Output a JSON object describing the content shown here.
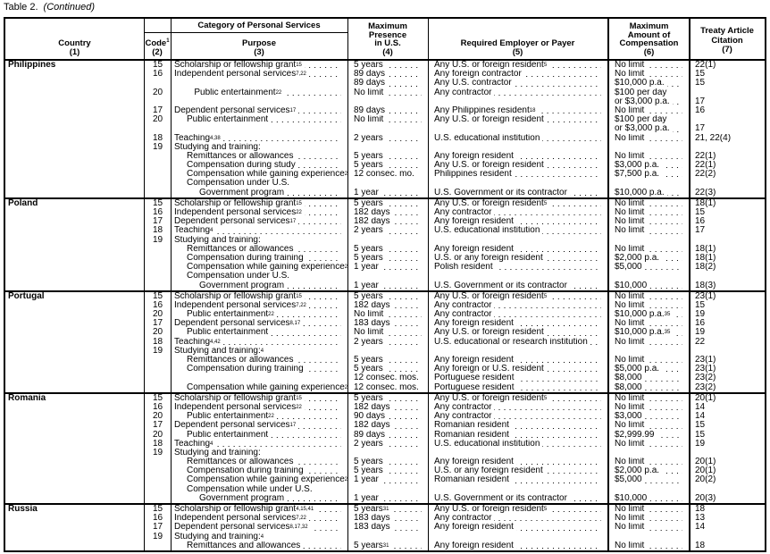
{
  "caption": {
    "label": "Table 2.",
    "note": "(Continued)"
  },
  "headers": {
    "country": "Country",
    "country_num": "(1)",
    "code": "Code",
    "code_sup": "1",
    "code_num": "(2)",
    "category": "Category of Personal Services",
    "purpose": "Purpose",
    "purpose_num": "(3)",
    "presence_1": "Maximum",
    "presence_2": "Presence",
    "presence_3": "in U.S.",
    "presence_num": "(4)",
    "payer": "Required Employer or Payer",
    "payer_num": "(5)",
    "comp_1": "Maximum",
    "comp_2": "Amount of",
    "comp_3": "Compensation",
    "comp_num": "(6)",
    "cite_1": "Treaty Article",
    "cite_2": "Citation",
    "cite_num": "(7)"
  },
  "countries": [
    {
      "name": "Philippines",
      "rows": [
        {
          "c": "15",
          "p": "Scholarship or fellowship grant",
          "ps": "15",
          "m": "5 years",
          "e": "Any U.S. or foreign resident",
          "es": "5",
          "a": "No limit",
          "t": "22(1)"
        },
        {
          "c": "16",
          "p": "Independent personal services",
          "ps": "7,22",
          "m": "89 days",
          "e": "Any foreign contractor",
          "a": "No limit",
          "t": "15"
        },
        {
          "m": "89 days",
          "e": "Any U.S. contractor",
          "a": "$10,000 p.a.",
          "t": "15"
        },
        {
          "c": "20",
          "p": "Public entertainment",
          "ps": "22",
          "i": 1.6,
          "m": "No limit",
          "e": "Any contractor",
          "a": "$100 per day"
        },
        {
          "a": "or $3,000 p.a.",
          "t": "17"
        },
        {
          "c": "17",
          "p": "Dependent personal services",
          "ps": "17",
          "m": "89 days",
          "e": "Any Philippines resident",
          "es": "18",
          "a": "No limit",
          "t": "16"
        },
        {
          "c": "20",
          "p": "Public entertainment",
          "i": 1,
          "m": "No limit",
          "e": "Any U.S. or foreign resident",
          "a": "$100 per day"
        },
        {
          "a": "or $3,000 p.a.",
          "t": "17"
        },
        {
          "c": "18",
          "p": "Teaching",
          "ps": "4,38",
          "m": "2 years",
          "e": "U.S. educational institution",
          "a": "No limit",
          "t": "21, 22(4)"
        },
        {
          "c": "19",
          "p": "Studying and training:"
        },
        {
          "p": "Remittances or allowances",
          "i": 1,
          "m": "5 years",
          "e": "Any foreign resident",
          "a": "No limit",
          "t": "22(1)"
        },
        {
          "p": "Compensation during study",
          "i": 1,
          "m": "5 years",
          "e": "Any U.S. or foreign resident",
          "a": "$3,000 p.a.",
          "t": "22(1)"
        },
        {
          "p": "Compensation while gaining experience",
          "ps": "2",
          "i": 1,
          "m": "12 consec. mo.",
          "e": "Philippines resident",
          "a": "$7,500 p.a.",
          "t": "22(2)"
        },
        {
          "p": "Compensation under U.S.",
          "i": 1
        },
        {
          "p": "Government program",
          "i": 2,
          "m": "1 year",
          "e": "U.S. Government or its contractor",
          "a": "$10,000 p.a.",
          "t": "22(3)"
        }
      ]
    },
    {
      "name": "Poland",
      "rows": [
        {
          "c": "15",
          "p": "Scholarship or fellowship grant",
          "ps": "15",
          "m": "5 years",
          "e": "Any U.S. or foreign resident",
          "es": "5",
          "a": "No limit",
          "t": "18(1)"
        },
        {
          "c": "16",
          "p": "Independent personal services",
          "ps": "22",
          "m": "182 days",
          "e": "Any contractor",
          "a": "No limit",
          "t": "15"
        },
        {
          "c": "17",
          "p": "Dependent personal services",
          "ps": "17",
          "m": "182 days",
          "e": "Any foreign resident",
          "a": "No limit",
          "t": "16"
        },
        {
          "c": "18",
          "p": "Teaching",
          "ps": "4",
          "m": "2 years",
          "e": "U.S. educational institution",
          "a": "No limit",
          "t": "17"
        },
        {
          "c": "19",
          "p": "Studying and training:"
        },
        {
          "p": "Remittances or allowances",
          "i": 1,
          "m": "5 years",
          "e": "Any foreign resident",
          "a": "No limit",
          "t": "18(1)"
        },
        {
          "p": "Compensation during training",
          "i": 1,
          "m": "5 years",
          "e": "U.S. or any foreign resident",
          "a": "$2,000 p.a.",
          "t": "18(1)"
        },
        {
          "p": "Compensation while gaining experience",
          "ps": "2",
          "i": 1,
          "m": "1 year",
          "e": "Polish resident",
          "a": "$5,000",
          "t": "18(2)"
        },
        {
          "p": "Compensation under U.S.",
          "i": 1
        },
        {
          "p": "Government program",
          "i": 2,
          "m": "1 year",
          "e": "U.S. Government or its contractor",
          "a": "$10,000",
          "t": "18(3)"
        }
      ]
    },
    {
      "name": "Portugal",
      "rows": [
        {
          "c": "15",
          "p": "Scholarship or fellowship grant",
          "ps": "15",
          "m": "5 years",
          "e": "Any U.S. or foreign resident",
          "es": "5",
          "a": "No limit",
          "t": "23(1)"
        },
        {
          "c": "16",
          "p": "Independent personal services",
          "ps": "7,22",
          "m": "182 days",
          "e": "Any contractor",
          "a": "No limit",
          "t": "15"
        },
        {
          "c": "20",
          "p": "Public entertainment",
          "ps": "22",
          "i": 1,
          "m": "No limit",
          "e": "Any contractor",
          "a": "$10,000 p.a.",
          "as": "35",
          "t": "19"
        },
        {
          "c": "17",
          "p": "Dependent personal services",
          "ps": "8,17",
          "m": "183 days",
          "e": "Any foreign resident",
          "a": "No limit",
          "t": "16"
        },
        {
          "c": "20",
          "p": "Public entertainment",
          "i": 1,
          "m": "No limit",
          "e": "Any U.S. or foreign resident",
          "a": "$10,000 p.a.",
          "as": "35",
          "t": "19"
        },
        {
          "c": "18",
          "p": "Teaching",
          "ps": "4,42",
          "m": "2 years",
          "e": "U.S. educational or research institution",
          "a": "No limit",
          "t": "22"
        },
        {
          "c": "19",
          "p": "Studying and training:",
          "ps": "4"
        },
        {
          "p": "Remittances or allowances",
          "i": 1,
          "m": "5 years",
          "e": "Any foreign resident",
          "a": "No limit",
          "t": "23(1)"
        },
        {
          "p": "Compensation during training",
          "i": 1,
          "m": "5 years",
          "e": "Any foreign or U.S. resident",
          "a": "$5,000 p.a.",
          "t": "23(1)"
        },
        {
          "m": "12 consec. mos.",
          "e": "Portuguese resident",
          "a": "$8,000",
          "t": "23(2)"
        },
        {
          "p": "Compensation while gaining experience",
          "ps": "2",
          "i": 1,
          "m": "12 consec. mos.",
          "e": "Portuguese resident",
          "a": "$8,000",
          "t": "23(2)"
        }
      ]
    },
    {
      "name": "Romania",
      "rows": [
        {
          "c": "15",
          "p": "Scholarship or fellowship grant",
          "ps": "15",
          "m": "5 years",
          "e": "Any U.S. or foreign resident",
          "es": "5",
          "a": "No limit",
          "t": "20(1)"
        },
        {
          "c": "16",
          "p": "Independent personal services",
          "ps": "22",
          "m": "182 days",
          "e": "Any contractor",
          "a": "No limit",
          "t": "14"
        },
        {
          "c": "20",
          "p": "Public entertainment",
          "ps": "22",
          "i": 1,
          "m": "90 days",
          "e": "Any contractor",
          "a": "$3,000",
          "t": "14"
        },
        {
          "c": "17",
          "p": "Dependent personal services",
          "ps": "17",
          "m": "182 days",
          "e": "Romanian resident",
          "a": "No limit",
          "t": "15"
        },
        {
          "c": "20",
          "p": "Public entertainment",
          "i": 1,
          "m": "89 days",
          "e": "Romanian resident",
          "a": "$2,999.99",
          "t": "15"
        },
        {
          "c": "18",
          "p": "Teaching",
          "ps": "4",
          "m": "2 years",
          "e": "U.S. educational institution",
          "a": "No limit",
          "t": "19"
        },
        {
          "c": "19",
          "p": "Studying and training:"
        },
        {
          "p": "Remittances or allowances",
          "i": 1,
          "m": "5 years",
          "e": "Any foreign resident",
          "a": "No limit",
          "t": "20(1)"
        },
        {
          "p": "Compensation during training",
          "i": 1,
          "m": "5 years",
          "e": "U.S. or any foreign resident",
          "a": "$2,000 p.a.",
          "t": "20(1)"
        },
        {
          "p": "Compensation while gaining experience",
          "ps": "2",
          "i": 1,
          "m": "1 year",
          "e": "Romanian resident",
          "a": "$5,000",
          "t": "20(2)"
        },
        {
          "p": "Compensation while under U.S.",
          "i": 1
        },
        {
          "p": "Government program",
          "i": 2,
          "m": "1 year",
          "e": "U.S. Government or its contractor",
          "a": "$10,000",
          "t": "20(3)"
        }
      ]
    },
    {
      "name": "Russia",
      "rows": [
        {
          "c": "15",
          "p": "Scholarship or fellowship grant",
          "ps": "4,15,41",
          "m": "5 years",
          "ms": "31",
          "e": "Any U.S. or foreign resident",
          "es": "5",
          "a": "No limit",
          "t": "18"
        },
        {
          "c": "16",
          "p": "Independent personal services",
          "ps": "7,22",
          "m": "183 days",
          "e": "Any contractor",
          "a": "No limit",
          "t": "13"
        },
        {
          "c": "17",
          "p": "Dependent personal services",
          "ps": "8,17,32",
          "m": "183 days",
          "e": "Any foreign resident",
          "a": "No limit",
          "t": "14"
        },
        {
          "c": "19",
          "p": "Studying and training:",
          "ps": "4"
        },
        {
          "p": "Remittances and allowances",
          "i": 1,
          "m": "5 years",
          "ms": "31",
          "e": "Any foreign resident",
          "a": "No limit",
          "t": "18"
        }
      ]
    }
  ]
}
